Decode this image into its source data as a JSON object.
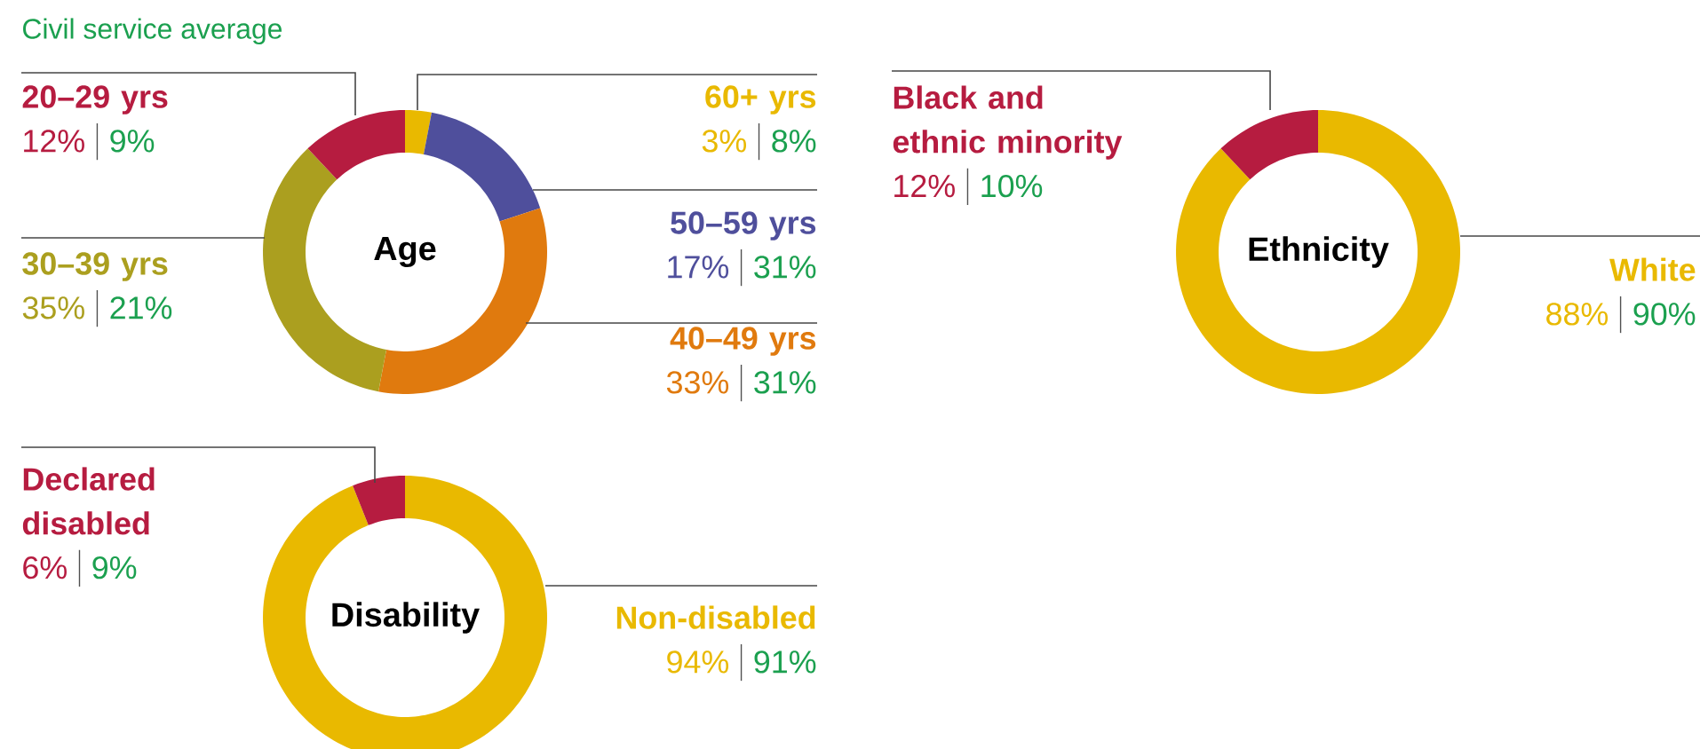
{
  "chart_data": [
    {
      "type": "donut",
      "title": "Age",
      "categories": [
        "60+ yrs",
        "50–59 yrs",
        "40–49 yrs",
        "30–39 yrs",
        "20–29 yrs"
      ],
      "colors": [
        "#e9b900",
        "#4f4f9c",
        "#e07a0e",
        "#ab9f1f",
        "#b61c40"
      ],
      "values": [
        3,
        17,
        33,
        35,
        12
      ],
      "value_labels": [
        "3%",
        "17%",
        "33%",
        "35%",
        "12%"
      ],
      "annotations": [
        "Civil service average",
        "8%",
        "31%",
        "31%",
        "21%",
        "9%"
      ]
    },
    {
      "type": "donut",
      "title": "Ethnicity",
      "categories": [
        "White",
        "Black and ethnic minority"
      ],
      "colors": [
        "#e9b900",
        "#b61c40"
      ],
      "values": [
        88,
        12
      ],
      "value_labels": [
        "88%",
        "12%"
      ],
      "annotations": [
        "90%",
        "10%"
      ]
    },
    {
      "type": "donut",
      "title": "Disability",
      "categories": [
        "Non-disabled",
        "Declared disabled"
      ],
      "colors": [
        "#e9b900",
        "#b61c40"
      ],
      "values": [
        94,
        6
      ],
      "value_labels": [
        "94%",
        "6%"
      ],
      "annotations": [
        "91%",
        "9%"
      ]
    }
  ]
}
